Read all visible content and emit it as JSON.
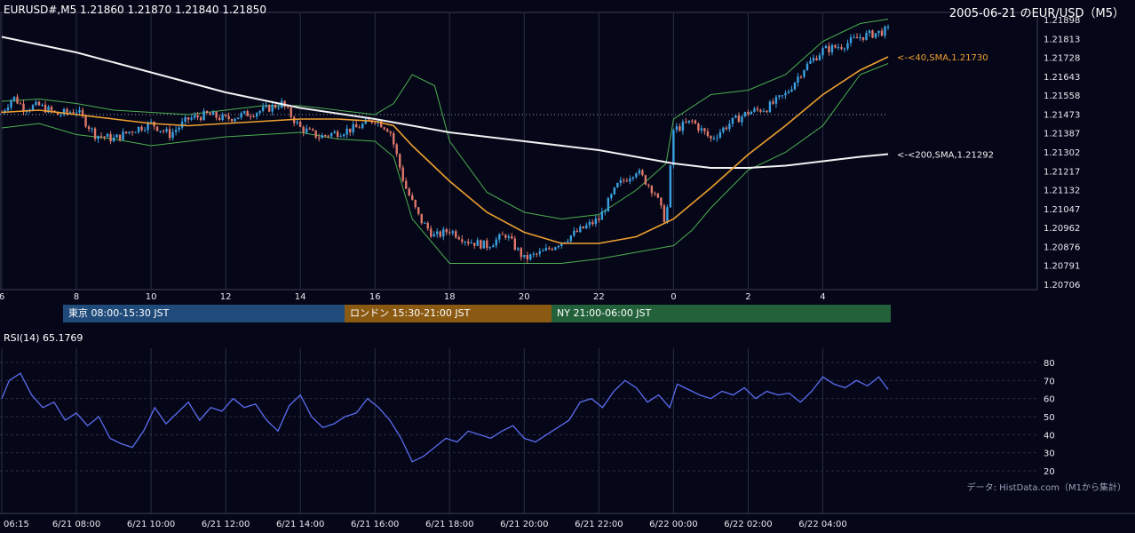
{
  "header": {
    "symbol_info": "EURUSD#,M5 1.21860 1.21870 1.21840 1.21850",
    "date_pair": "2005-06-21 のEUR/USD（M5）"
  },
  "colors": {
    "background": "#050718",
    "grid": "#2a2d44",
    "candle_up": "#3aa0e0",
    "candle_down": "#e0786a",
    "sma40": "#f0a030",
    "sma200": "#f2f2f2",
    "bollinger": "#4caf50",
    "rsi": "#5b6cf0",
    "tokyo": "#1f4a7a",
    "london": "#8a5a12",
    "ny": "#23613a"
  },
  "sessions": [
    {
      "label": "東京 08:00-15:30 JST",
      "color": "#1f4a7a"
    },
    {
      "label": "ロンドン 15:30-21:00 JST",
      "color": "#8a5a12"
    },
    {
      "label": "NY 21:00-06:00 JST",
      "color": "#23613a"
    }
  ],
  "rsi_panel": {
    "title": "RSI(14) 65.1769",
    "attribution": "データ: HistData.com（M1から集計）"
  },
  "chart_data": [
    {
      "type": "candlestick",
      "title": "",
      "x_tick_labels": [
        "6",
        "8",
        "10",
        "12",
        "14",
        "16",
        "18",
        "20",
        "22",
        "0",
        "2",
        "4"
      ],
      "y_tick_labels": [
        "1.21898",
        "1.21813",
        "1.21728",
        "1.21643",
        "1.21558",
        "1.21473",
        "1.21387",
        "1.21302",
        "1.21217",
        "1.21132",
        "1.21047",
        "1.20962",
        "1.20876",
        "1.20791",
        "1.20706"
      ],
      "ylim": [
        1.20706,
        1.21898
      ],
      "x_range_hours": [
        6.0,
        29.75
      ],
      "last_close": 1.2185,
      "reference_level": 1.2147,
      "series": [
        {
          "name": "<-<40,SMA,1.21730",
          "color": "#f0a030",
          "points": [
            [
              6.0,
              1.2148
            ],
            [
              7.0,
              1.2149
            ],
            [
              8.0,
              1.2147
            ],
            [
              9.0,
              1.2145
            ],
            [
              10.0,
              1.2143
            ],
            [
              11.0,
              1.2142
            ],
            [
              12.0,
              1.2143
            ],
            [
              13.0,
              1.2144
            ],
            [
              14.0,
              1.2145
            ],
            [
              15.0,
              1.2145
            ],
            [
              16.0,
              1.2144
            ],
            [
              16.5,
              1.2142
            ],
            [
              17.0,
              1.2133
            ],
            [
              18.0,
              1.2117
            ],
            [
              19.0,
              1.2103
            ],
            [
              20.0,
              1.2094
            ],
            [
              21.0,
              1.2089
            ],
            [
              22.0,
              1.2089
            ],
            [
              23.0,
              1.2092
            ],
            [
              24.0,
              1.21
            ],
            [
              25.0,
              1.2114
            ],
            [
              26.0,
              1.2129
            ],
            [
              27.0,
              1.2142
            ],
            [
              28.0,
              1.2156
            ],
            [
              29.0,
              1.2167
            ],
            [
              29.75,
              1.2173
            ]
          ]
        },
        {
          "name": "<-<200,SMA,1.21292",
          "color": "#f2f2f2",
          "points": [
            [
              6.0,
              1.2182
            ],
            [
              8.0,
              1.2175
            ],
            [
              10.0,
              1.2166
            ],
            [
              12.0,
              1.2157
            ],
            [
              14.0,
              1.215
            ],
            [
              16.0,
              1.2145
            ],
            [
              18.0,
              1.2139
            ],
            [
              20.0,
              1.2135
            ],
            [
              22.0,
              1.2131
            ],
            [
              24.0,
              1.2125
            ],
            [
              25.0,
              1.2123
            ],
            [
              26.0,
              1.2123
            ],
            [
              27.0,
              1.2124
            ],
            [
              28.0,
              1.2126
            ],
            [
              29.0,
              1.2128
            ],
            [
              29.75,
              1.21292
            ]
          ]
        },
        {
          "name": "Bollinger upper",
          "color": "#4caf50",
          "points": [
            [
              6.0,
              1.2153
            ],
            [
              7.0,
              1.2154
            ],
            [
              8.0,
              1.2152
            ],
            [
              9.0,
              1.2149
            ],
            [
              10.0,
              1.2148
            ],
            [
              11.0,
              1.2147
            ],
            [
              12.0,
              1.2149
            ],
            [
              13.0,
              1.2151
            ],
            [
              14.0,
              1.2151
            ],
            [
              15.0,
              1.2149
            ],
            [
              16.0,
              1.2147
            ],
            [
              16.5,
              1.2152
            ],
            [
              17.0,
              1.2165
            ],
            [
              17.6,
              1.216
            ],
            [
              18.0,
              1.2135
            ],
            [
              19.0,
              1.2112
            ],
            [
              20.0,
              1.2103
            ],
            [
              21.0,
              1.21
            ],
            [
              22.0,
              1.2102
            ],
            [
              23.0,
              1.2113
            ],
            [
              23.8,
              1.2125
            ],
            [
              24.0,
              1.2145
            ],
            [
              25.0,
              1.2156
            ],
            [
              26.0,
              1.2158
            ],
            [
              27.0,
              1.2165
            ],
            [
              28.0,
              1.218
            ],
            [
              29.0,
              1.2188
            ],
            [
              29.75,
              1.219
            ]
          ]
        },
        {
          "name": "Bollinger lower",
          "color": "#4caf50",
          "points": [
            [
              6.0,
              1.2141
            ],
            [
              7.0,
              1.2143
            ],
            [
              8.0,
              1.2138
            ],
            [
              9.0,
              1.2136
            ],
            [
              10.0,
              1.2133
            ],
            [
              11.0,
              1.2135
            ],
            [
              12.0,
              1.2137
            ],
            [
              13.0,
              1.2138
            ],
            [
              14.0,
              1.2139
            ],
            [
              15.0,
              1.2136
            ],
            [
              16.0,
              1.2135
            ],
            [
              16.5,
              1.2128
            ],
            [
              17.0,
              1.21
            ],
            [
              18.0,
              1.208
            ],
            [
              19.0,
              1.208
            ],
            [
              20.0,
              1.208
            ],
            [
              21.0,
              1.208
            ],
            [
              22.0,
              1.2082
            ],
            [
              23.0,
              1.2085
            ],
            [
              24.0,
              1.2088
            ],
            [
              24.5,
              1.2095
            ],
            [
              25.0,
              1.2105
            ],
            [
              26.0,
              1.2122
            ],
            [
              27.0,
              1.213
            ],
            [
              28.0,
              1.2142
            ],
            [
              29.0,
              1.2165
            ],
            [
              29.75,
              1.217
            ]
          ]
        },
        {
          "name": "close",
          "color": "#3aa0e0",
          "points": [
            [
              6.0,
              1.2148
            ],
            [
              6.3,
              1.2155
            ],
            [
              6.6,
              1.215
            ],
            [
              7.0,
              1.2151
            ],
            [
              7.5,
              1.2147
            ],
            [
              8.0,
              1.2149
            ],
            [
              8.5,
              1.2138
            ],
            [
              9.0,
              1.2136
            ],
            [
              9.5,
              1.214
            ],
            [
              10.0,
              1.2143
            ],
            [
              10.5,
              1.2138
            ],
            [
              11.0,
              1.2145
            ],
            [
              11.5,
              1.2147
            ],
            [
              12.0,
              1.2145
            ],
            [
              12.5,
              1.2147
            ],
            [
              13.0,
              1.2149
            ],
            [
              13.5,
              1.2152
            ],
            [
              14.0,
              1.2141
            ],
            [
              14.5,
              1.2137
            ],
            [
              15.0,
              1.2139
            ],
            [
              15.5,
              1.2141
            ],
            [
              16.0,
              1.2145
            ],
            [
              16.4,
              1.214
            ],
            [
              16.8,
              1.2115
            ],
            [
              17.2,
              1.21
            ],
            [
              17.6,
              1.2092
            ],
            [
              18.0,
              1.2095
            ],
            [
              18.5,
              1.209
            ],
            [
              19.0,
              1.2088
            ],
            [
              19.5,
              1.2093
            ],
            [
              20.0,
              1.2082
            ],
            [
              20.5,
              1.2085
            ],
            [
              21.0,
              1.209
            ],
            [
              21.5,
              1.2095
            ],
            [
              22.0,
              1.21
            ],
            [
              22.5,
              1.2115
            ],
            [
              23.0,
              1.2122
            ],
            [
              23.5,
              1.2112
            ],
            [
              23.8,
              1.2098
            ],
            [
              24.0,
              1.214
            ],
            [
              24.5,
              1.2144
            ],
            [
              25.0,
              1.2136
            ],
            [
              25.5,
              1.2143
            ],
            [
              26.0,
              1.2148
            ],
            [
              26.5,
              1.215
            ],
            [
              27.0,
              1.2156
            ],
            [
              27.5,
              1.2168
            ],
            [
              28.0,
              1.2176
            ],
            [
              28.5,
              1.2178
            ],
            [
              29.0,
              1.2182
            ],
            [
              29.75,
              1.2185
            ]
          ]
        }
      ]
    },
    {
      "type": "line",
      "title": "RSI(14) 65.1769",
      "x_tick_labels": [
        "06:15",
        "6/21 08:00",
        "6/21 10:00",
        "6/21 12:00",
        "6/21 14:00",
        "6/21 16:00",
        "6/21 18:00",
        "6/21 20:00",
        "6/21 22:00",
        "6/22 00:00",
        "6/22 02:00",
        "6/22 04:00"
      ],
      "y_tick_labels": [
        "80",
        "70",
        "60",
        "50",
        "40",
        "30",
        "20"
      ],
      "ylim": [
        20,
        80
      ],
      "series": [
        {
          "name": "RSI(14)",
          "color": "#5b6cf0",
          "points": [
            [
              6.0,
              60
            ],
            [
              6.2,
              70
            ],
            [
              6.5,
              74
            ],
            [
              6.8,
              62
            ],
            [
              7.1,
              55
            ],
            [
              7.4,
              58
            ],
            [
              7.7,
              48
            ],
            [
              8.0,
              52
            ],
            [
              8.3,
              45
            ],
            [
              8.6,
              50
            ],
            [
              8.9,
              38
            ],
            [
              9.2,
              35
            ],
            [
              9.5,
              33
            ],
            [
              9.8,
              42
            ],
            [
              10.1,
              55
            ],
            [
              10.4,
              46
            ],
            [
              10.7,
              52
            ],
            [
              11.0,
              58
            ],
            [
              11.3,
              48
            ],
            [
              11.6,
              55
            ],
            [
              11.9,
              53
            ],
            [
              12.2,
              60
            ],
            [
              12.5,
              55
            ],
            [
              12.8,
              57
            ],
            [
              13.1,
              48
            ],
            [
              13.4,
              42
            ],
            [
              13.7,
              56
            ],
            [
              14.0,
              62
            ],
            [
              14.3,
              50
            ],
            [
              14.6,
              44
            ],
            [
              14.9,
              46
            ],
            [
              15.2,
              50
            ],
            [
              15.5,
              52
            ],
            [
              15.8,
              60
            ],
            [
              16.1,
              55
            ],
            [
              16.4,
              48
            ],
            [
              16.7,
              38
            ],
            [
              17.0,
              25
            ],
            [
              17.3,
              28
            ],
            [
              17.6,
              33
            ],
            [
              17.9,
              38
            ],
            [
              18.2,
              36
            ],
            [
              18.5,
              42
            ],
            [
              18.8,
              40
            ],
            [
              19.1,
              38
            ],
            [
              19.4,
              42
            ],
            [
              19.7,
              45
            ],
            [
              20.0,
              38
            ],
            [
              20.3,
              36
            ],
            [
              20.6,
              40
            ],
            [
              20.9,
              44
            ],
            [
              21.2,
              48
            ],
            [
              21.5,
              58
            ],
            [
              21.8,
              60
            ],
            [
              22.1,
              55
            ],
            [
              22.4,
              64
            ],
            [
              22.7,
              70
            ],
            [
              23.0,
              66
            ],
            [
              23.3,
              58
            ],
            [
              23.6,
              62
            ],
            [
              23.9,
              55
            ],
            [
              24.1,
              68
            ],
            [
              24.4,
              65
            ],
            [
              24.7,
              62
            ],
            [
              25.0,
              60
            ],
            [
              25.3,
              64
            ],
            [
              25.6,
              62
            ],
            [
              25.9,
              66
            ],
            [
              26.2,
              60
            ],
            [
              26.5,
              64
            ],
            [
              26.8,
              62
            ],
            [
              27.1,
              63
            ],
            [
              27.4,
              58
            ],
            [
              27.7,
              64
            ],
            [
              28.0,
              72
            ],
            [
              28.3,
              68
            ],
            [
              28.6,
              66
            ],
            [
              28.9,
              70
            ],
            [
              29.2,
              67
            ],
            [
              29.5,
              72
            ],
            [
              29.75,
              65
            ]
          ]
        }
      ]
    }
  ]
}
